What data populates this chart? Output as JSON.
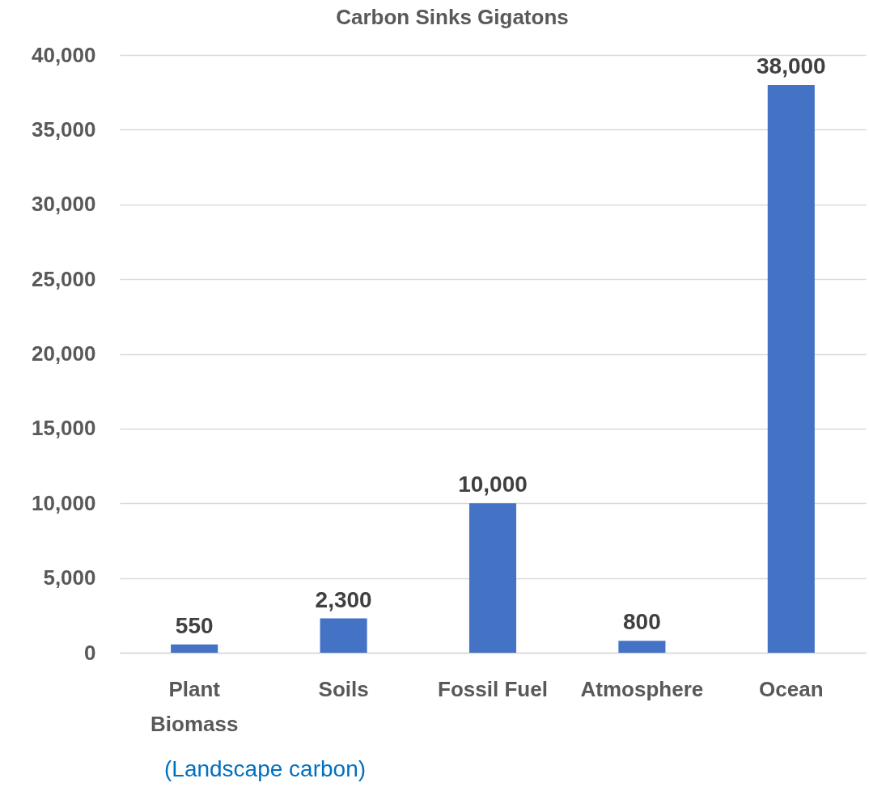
{
  "chart_data": {
    "type": "bar",
    "title": "Carbon Sinks Gigatons",
    "categories": [
      "Plant Biomass",
      "Soils",
      "Fossil Fuel",
      "Atmosphere",
      "Ocean"
    ],
    "values": [
      550,
      2300,
      10000,
      800,
      38000
    ],
    "value_labels": [
      "550",
      "2,300",
      "10,000",
      "800",
      "38,000"
    ],
    "color": "#4472c4",
    "ylim": [
      0,
      40000
    ],
    "yticks": [
      0,
      {
        "value": 5000,
        "label": "5,000"
      },
      {
        "value": 10000,
        "label": "10,000"
      },
      {
        "value": 15000,
        "label": "15,000"
      },
      {
        "value": 20000,
        "label": "20,000"
      },
      {
        "value": 25000,
        "label": "25,000"
      },
      {
        "value": 30000,
        "label": "30,000"
      },
      {
        "value": 35000,
        "label": "35,000"
      },
      {
        "value": 40000,
        "label": "40,000"
      }
    ],
    "grid": "y",
    "annotations": [
      "(Landscape carbon)"
    ]
  }
}
